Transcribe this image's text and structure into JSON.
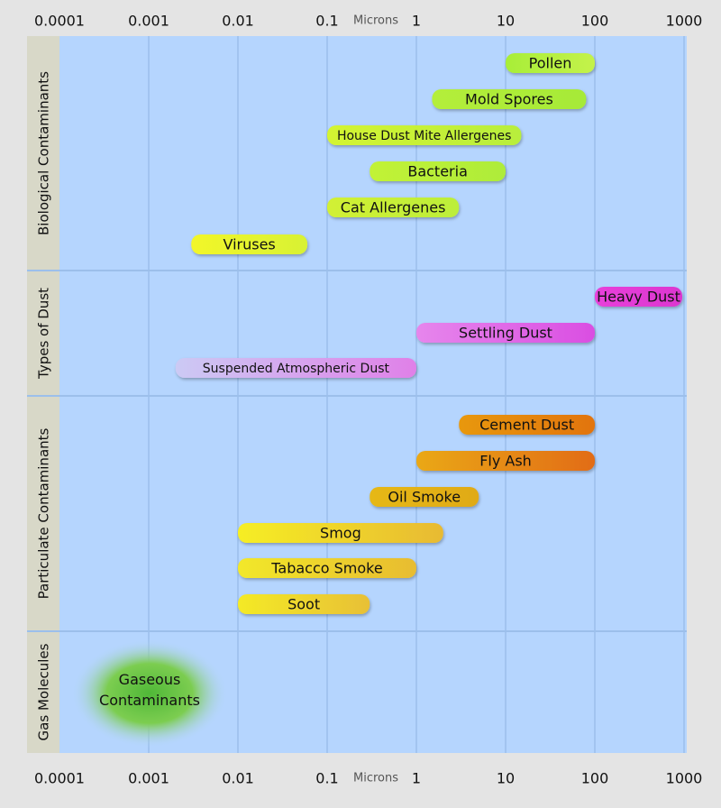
{
  "chart_data": {
    "type": "range-bar",
    "x_axis": {
      "scale": "log",
      "range": [
        0.0001,
        1000
      ],
      "unit_label": "Microns",
      "ticks": [
        {
          "value": 0.0001,
          "label": "0.0001"
        },
        {
          "value": 0.001,
          "label": "0.001"
        },
        {
          "value": 0.01,
          "label": "0.01"
        },
        {
          "value": 0.1,
          "label": "0.1"
        },
        {
          "value": 1,
          "label": "1"
        },
        {
          "value": 10,
          "label": "10"
        },
        {
          "value": 100,
          "label": "100"
        },
        {
          "value": 1000,
          "label": "1000"
        }
      ],
      "position": "top and bottom"
    },
    "grid": true,
    "colors": {
      "page_background": "#e4e4e4",
      "plot_background": "#b5d5fe",
      "gridline": "#9cbfeb",
      "category_label_background": "#d8d8c8",
      "text": "#111111",
      "axis_unit_text": "#555555"
    },
    "categories": [
      {
        "name": "Biological Contaminants",
        "items": [
          {
            "label": "Pollen",
            "min": 10,
            "max": 100,
            "colors": [
              "#a8ee38",
              "#c4f24a"
            ]
          },
          {
            "label": "Mold Spores",
            "min": 1.5,
            "max": 80,
            "colors": [
              "#b4ee3a",
              "#a6ea38"
            ]
          },
          {
            "label": "House Dust Mite Allergenes",
            "min": 0.1,
            "max": 15,
            "colors": [
              "#d4f432",
              "#b8ee3c"
            ]
          },
          {
            "label": "Bacteria",
            "min": 0.3,
            "max": 10,
            "colors": [
              "#c2f236",
              "#aeec3a"
            ]
          },
          {
            "label": "Cat Allergenes",
            "min": 0.1,
            "max": 3,
            "colors": [
              "#d2f034",
              "#bcee3a"
            ]
          },
          {
            "label": "Viruses",
            "min": 0.003,
            "max": 0.06,
            "colors": [
              "#f2f62a",
              "#d8f234"
            ]
          }
        ]
      },
      {
        "name": "Types of Dust",
        "items": [
          {
            "label": "Heavy Dust",
            "min": 100,
            "max": 1000,
            "colors": [
              "#e840da",
              "#dc36d0"
            ]
          },
          {
            "label": "Settling Dust",
            "min": 1,
            "max": 100,
            "colors": [
              "#e686ec",
              "#da4ee2"
            ]
          },
          {
            "label": "Suspended Atmospheric Dust",
            "min": 0.002,
            "max": 1,
            "colors": [
              "#cccaf4",
              "#e080e8"
            ]
          }
        ]
      },
      {
        "name": "Particulate Contaminants",
        "items": [
          {
            "label": "Cement Dust",
            "min": 3,
            "max": 100,
            "colors": [
              "#e8980e",
              "#e2740e"
            ]
          },
          {
            "label": "Fly Ash",
            "min": 1,
            "max": 100,
            "colors": [
              "#eaa812",
              "#e26c12"
            ]
          },
          {
            "label": "Oil Smoke",
            "min": 0.3,
            "max": 5,
            "colors": [
              "#e6b812",
              "#e0aa14"
            ]
          },
          {
            "label": "Smog",
            "min": 0.01,
            "max": 2,
            "colors": [
              "#f6ee24",
              "#e8ba32"
            ]
          },
          {
            "label": "Tabacco Smoke",
            "min": 0.01,
            "max": 1,
            "colors": [
              "#f2e82a",
              "#e8bc30"
            ]
          },
          {
            "label": "Soot",
            "min": 0.01,
            "max": 0.3,
            "colors": [
              "#f4ea26",
              "#e8c036"
            ]
          }
        ]
      },
      {
        "name": "Gas Molecules",
        "items": [
          {
            "label": "Gaseous Contaminants",
            "min": 0.0001,
            "max": 0.01,
            "shape": "glow",
            "colors": [
              "#50b838",
              "#7ccd50",
              "#b5d5fe"
            ]
          }
        ]
      }
    ]
  }
}
